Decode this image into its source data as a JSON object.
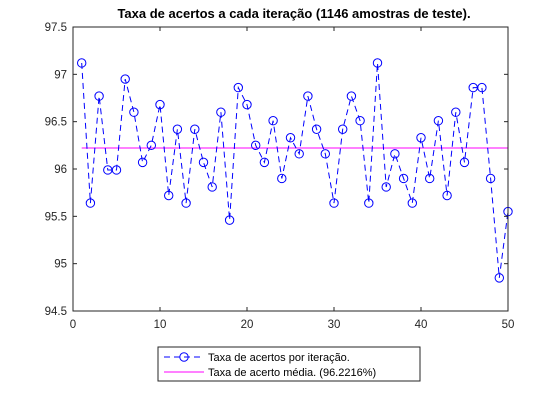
{
  "chart_data": {
    "type": "line",
    "title": "Taxa de acertos a cada iteração (1146 amostras de teste).",
    "xlabel": "",
    "ylabel": "",
    "xlim": [
      0,
      50
    ],
    "ylim": [
      94.5,
      97.5
    ],
    "xticks": [
      "0",
      "10",
      "20",
      "30",
      "40",
      "50"
    ],
    "xtick_values": [
      0,
      10,
      20,
      30,
      40,
      50
    ],
    "yticks": [
      "94.5",
      "95",
      "95.5",
      "96",
      "96.5",
      "97",
      "97.5"
    ],
    "ytick_values": [
      94.5,
      95,
      95.5,
      96,
      96.5,
      97,
      97.5
    ],
    "grid": false,
    "legend_position": "bottom-center",
    "series": [
      {
        "name": "Taxa de acertos por iteração.",
        "style": "dashed line with circle markers",
        "color": "#0000ff",
        "x": [
          1,
          2,
          3,
          4,
          5,
          6,
          7,
          8,
          9,
          10,
          11,
          12,
          13,
          14,
          15,
          16,
          17,
          18,
          19,
          20,
          21,
          22,
          23,
          24,
          25,
          26,
          27,
          28,
          29,
          30,
          31,
          32,
          33,
          34,
          35,
          36,
          37,
          38,
          39,
          40,
          41,
          42,
          43,
          44,
          45,
          46,
          47,
          48,
          49,
          50
        ],
        "values": [
          97.12,
          95.64,
          96.77,
          95.99,
          95.99,
          96.95,
          96.6,
          96.07,
          96.25,
          96.68,
          95.72,
          96.42,
          95.64,
          96.42,
          96.07,
          95.81,
          96.6,
          95.46,
          96.86,
          96.68,
          96.25,
          96.07,
          96.51,
          95.9,
          96.33,
          96.16,
          96.77,
          96.42,
          96.16,
          95.64,
          96.42,
          96.77,
          96.51,
          95.64,
          97.12,
          95.81,
          96.16,
          95.9,
          95.64,
          96.33,
          95.9,
          96.51,
          95.72,
          96.6,
          96.07,
          96.86,
          96.86,
          95.9,
          94.85,
          95.55
        ]
      },
      {
        "name": "Taxa de acerto média. (96.2216%)",
        "style": "solid line",
        "color": "#ff00ff",
        "x": [
          1,
          50
        ],
        "values": [
          96.2216,
          96.2216
        ]
      }
    ]
  }
}
